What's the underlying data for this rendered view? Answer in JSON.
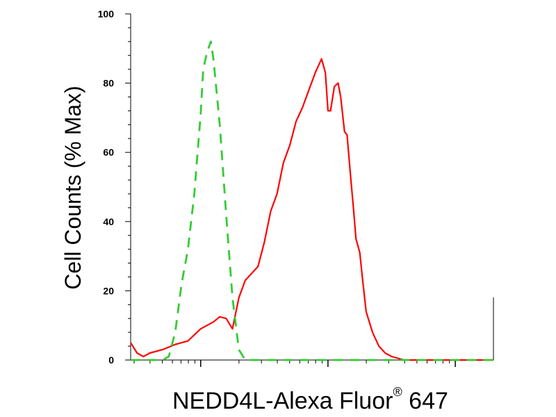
{
  "chart_data": {
    "type": "line",
    "title": "",
    "xlabel": {
      "prefix": "NEDD4L-Alexa Fluor",
      "sup": "®",
      "suffix": " 647"
    },
    "ylabel": "Cell Counts (% Max)",
    "ylim": [
      0,
      100
    ],
    "yticks": [
      "0",
      "20",
      "40",
      "60",
      "80",
      "100"
    ],
    "x_scale": "log",
    "x_range": [
      -0.55,
      2.3
    ],
    "x_tick_labels_shown": false,
    "grid": false,
    "legend": "none",
    "series": [
      {
        "color": "#ff0000",
        "style": "solid",
        "x": [
          -0.55,
          -0.5,
          -0.45,
          -0.4,
          -0.3,
          -0.2,
          -0.1,
          0.0,
          0.1,
          0.15,
          0.2,
          0.25,
          0.3,
          0.35,
          0.4,
          0.45,
          0.5,
          0.55,
          0.6,
          0.65,
          0.7,
          0.75,
          0.8,
          0.85,
          0.9,
          0.95,
          0.98,
          1.0,
          1.02,
          1.05,
          1.08,
          1.1,
          1.13,
          1.15,
          1.18,
          1.2,
          1.22,
          1.25,
          1.27,
          1.3,
          1.35,
          1.4,
          1.45,
          1.5,
          1.55,
          1.6,
          1.65,
          1.7,
          1.8,
          1.9,
          2.0,
          2.1,
          2.2,
          2.3
        ],
        "y": [
          5,
          2,
          1,
          2,
          3,
          4.5,
          5.5,
          9,
          11,
          12.5,
          12,
          9,
          18,
          23,
          25,
          27,
          34,
          43,
          48,
          57,
          62,
          69,
          73,
          78,
          83,
          87,
          83,
          72,
          72,
          79,
          80,
          76,
          66,
          65,
          52,
          44,
          35,
          31,
          24,
          14,
          8,
          4,
          2,
          1,
          0.5,
          0,
          0,
          0,
          0,
          0,
          0,
          0,
          0,
          0
        ]
      },
      {
        "color": "#33cc33",
        "style": "dashed",
        "x": [
          -0.55,
          -0.45,
          -0.4,
          -0.35,
          -0.3,
          -0.25,
          -0.2,
          -0.15,
          -0.1,
          -0.05,
          0.0,
          0.02,
          0.05,
          0.08,
          0.1,
          0.15,
          0.2,
          0.25,
          0.3,
          0.35,
          0.4,
          0.45,
          0.5,
          0.55,
          0.6,
          0.7,
          0.8,
          0.9,
          1.0,
          1.1,
          1.2,
          1.3,
          1.4,
          1.5,
          1.6,
          1.7,
          1.8,
          1.9,
          2.0,
          2.1,
          2.2,
          2.3
        ],
        "y": [
          0,
          0,
          0,
          0,
          0,
          1,
          8,
          22,
          32,
          48,
          71,
          84,
          89,
          92,
          87,
          68,
          42,
          18,
          3,
          0,
          0,
          0,
          0,
          0,
          0,
          0,
          0,
          0,
          0,
          0,
          0,
          0,
          0,
          0,
          0,
          0,
          0,
          0,
          0,
          0,
          0,
          0
        ]
      }
    ]
  }
}
